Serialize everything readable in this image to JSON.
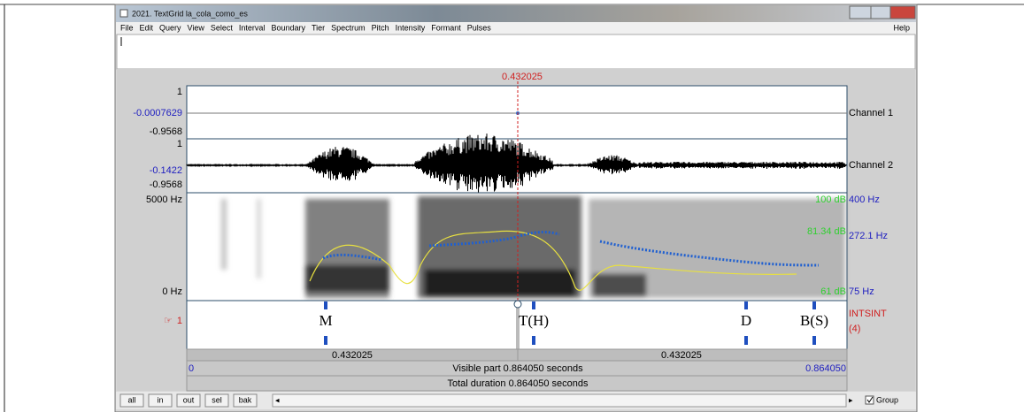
{
  "window": {
    "title": "2021. TextGrid la_cola_como_es",
    "menu": [
      "File",
      "Edit",
      "Query",
      "View",
      "Select",
      "Interval",
      "Boundary",
      "Tier",
      "Spectrum",
      "Pitch",
      "Intensity",
      "Formant",
      "Pulses"
    ],
    "help": "Help"
  },
  "cursor_time": "0.432025",
  "channel1": {
    "max": "1",
    "value": "-0.0007629",
    "min": "-0.9568",
    "name": "Channel 1"
  },
  "channel2": {
    "max": "1",
    "value": "-0.1422",
    "min": "-0.9568",
    "name": "Channel 2"
  },
  "spectrogram": {
    "top": "5000 Hz",
    "bottom": "0 Hz",
    "pitch_top": "400 Hz",
    "pitch_value": "272.1 Hz",
    "pitch_bottom": "75 Hz",
    "intensity_top": "100 dB",
    "intensity_value": "81.34 dB",
    "intensity_bottom": "61 dB"
  },
  "tier": {
    "number": "1",
    "name": "INTSINT",
    "count": "(4)",
    "labels": [
      "M",
      "T(H)",
      "D",
      "B(S)"
    ]
  },
  "time_rows": {
    "left_part": "0.432025",
    "right_part": "0.432025",
    "visible_start": "0",
    "visible": "Visible part 0.864050 seconds",
    "visible_end": "0.864050",
    "total": "Total duration 0.864050 seconds"
  },
  "buttons": [
    "all",
    "in",
    "out",
    "sel",
    "bak"
  ],
  "group": "Group"
}
